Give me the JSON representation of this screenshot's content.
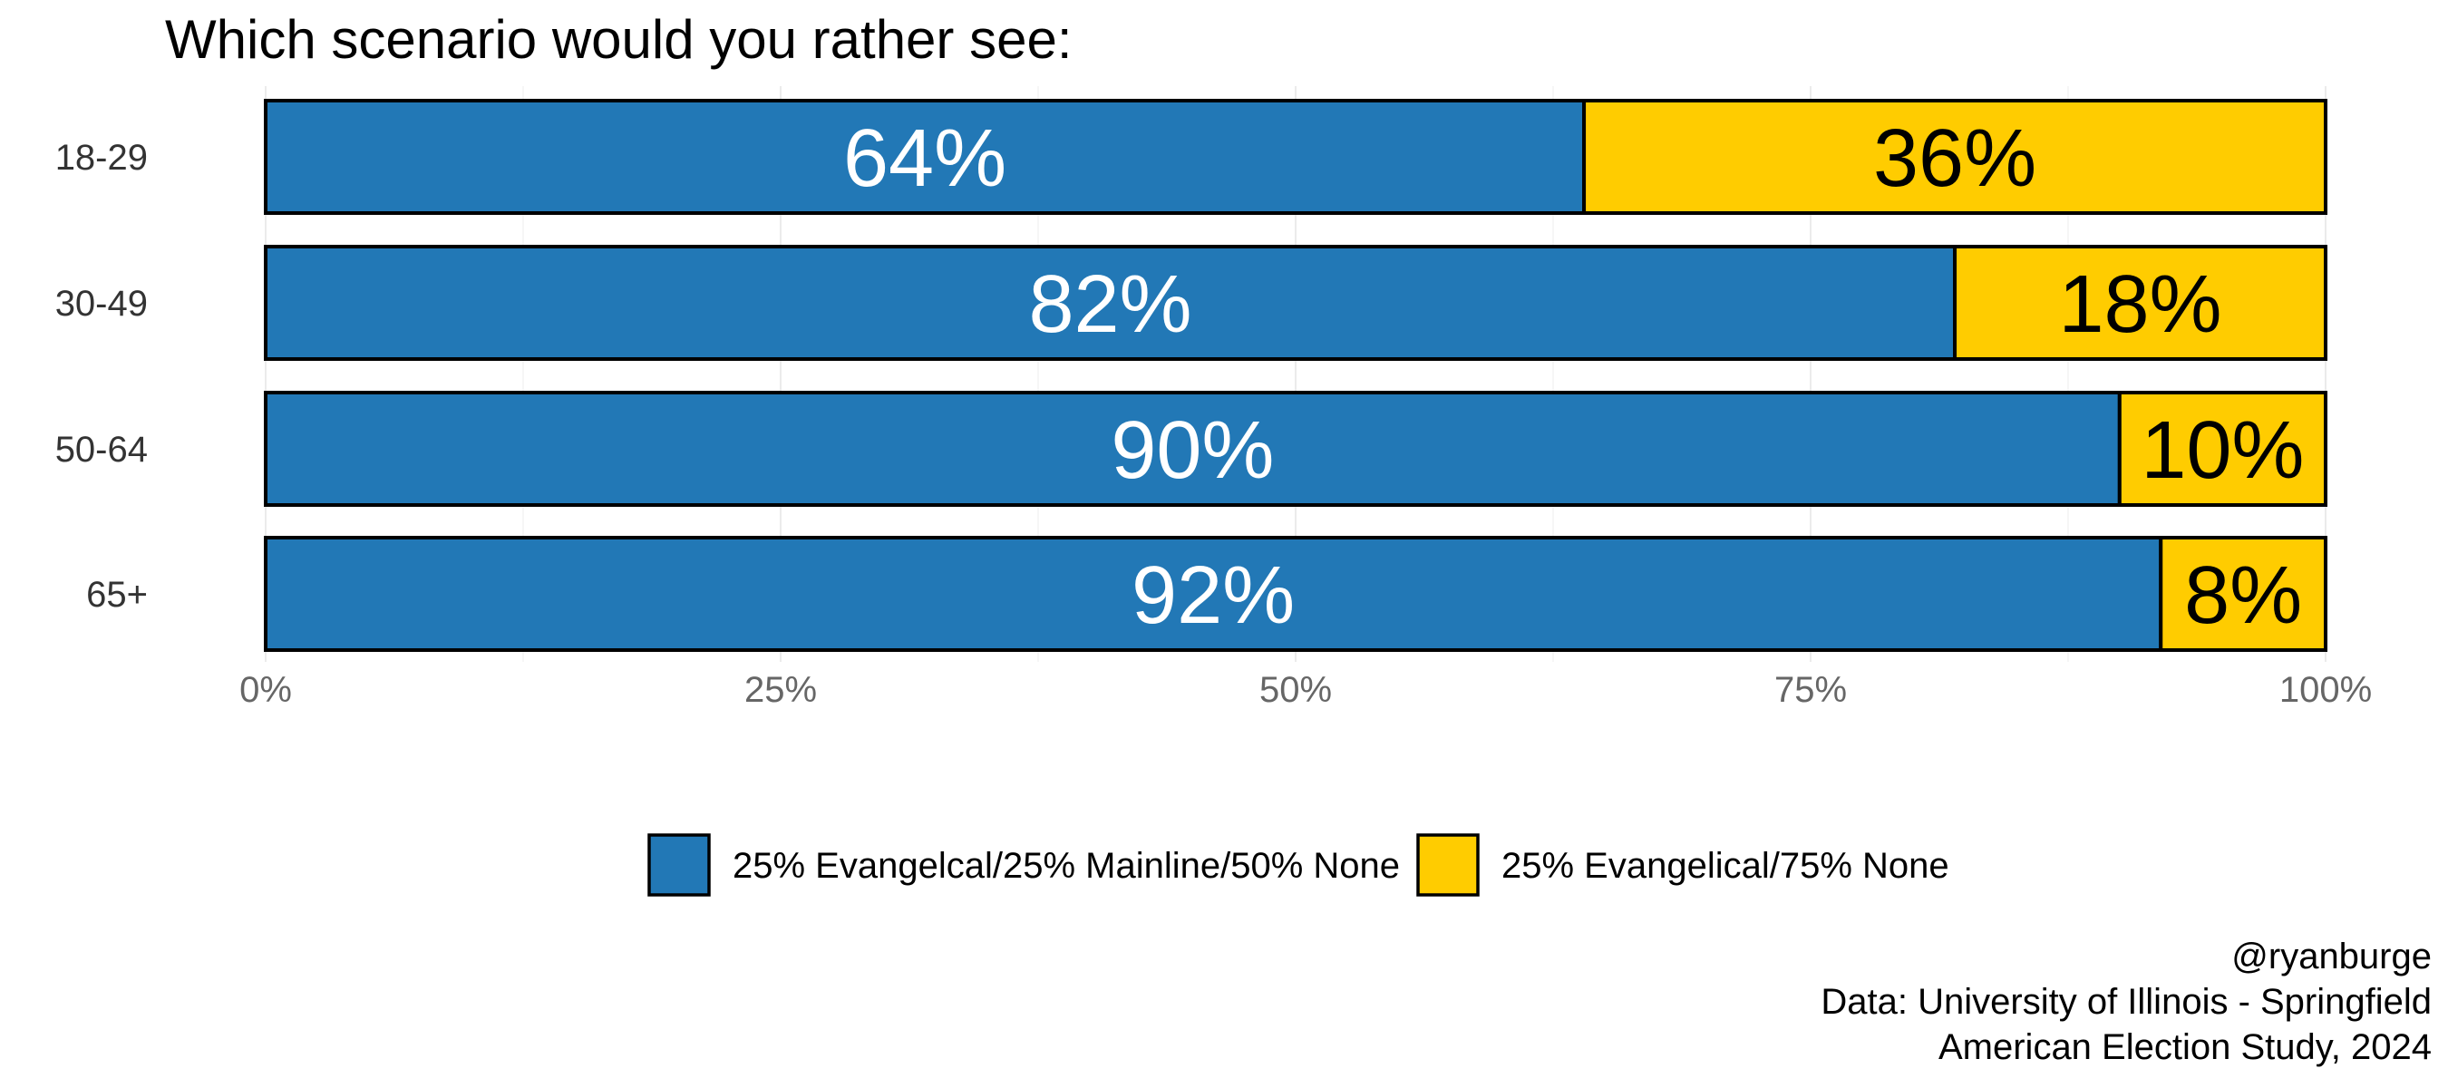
{
  "chart_data": {
    "type": "bar",
    "orientation": "horizontal",
    "stacked": true,
    "title": "Which scenario would you rather see:",
    "categories": [
      "18-29",
      "30-49",
      "50-64",
      "65+"
    ],
    "series": [
      {
        "name": "25% Evangelcal/25% Mainline/50% None",
        "color": "#2278b6",
        "label_color": "#ffffff",
        "values": [
          64,
          82,
          90,
          92
        ],
        "labels": [
          "64%",
          "82%",
          "90%",
          "92%"
        ]
      },
      {
        "name": "25% Evangelical/75% None",
        "color": "#ffcc00",
        "label_color": "#000000",
        "values": [
          36,
          18,
          10,
          8
        ],
        "labels": [
          "36%",
          "18%",
          "10%",
          "8%"
        ]
      }
    ],
    "xlim": [
      0,
      100
    ],
    "x_ticks": [
      0,
      25,
      50,
      75,
      100
    ],
    "x_tick_labels": [
      "0%",
      "25%",
      "50%",
      "75%",
      "100%"
    ],
    "xlabel": "",
    "ylabel": "",
    "grid": true,
    "legend_position": "bottom",
    "caption": [
      "@ryanburge",
      "Data: University of Illinois - Springfield",
      "American Election Study, 2024"
    ]
  }
}
